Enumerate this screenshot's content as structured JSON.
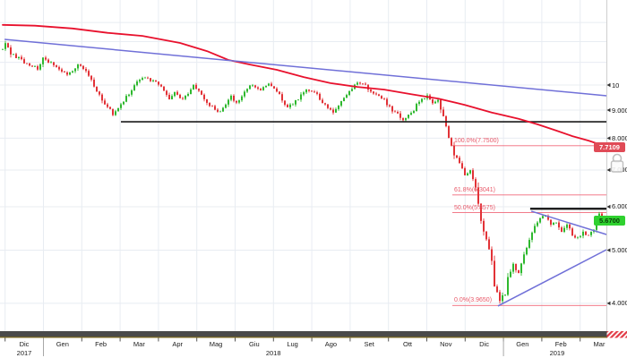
{
  "chart_data": {
    "type": "candlestick",
    "title": "",
    "y_axis": {
      "scale": "log",
      "ticks": [
        {
          "label": "10",
          "value": 10
        },
        {
          "label": "9.0000",
          "value": 9
        },
        {
          "label": "8.0000",
          "value": 8
        },
        {
          "label": "7.0000",
          "value": 7
        },
        {
          "label": "6.0000",
          "value": 6
        },
        {
          "label": "5.0000",
          "value": 5
        },
        {
          "label": "4.0000",
          "value": 4
        }
      ],
      "unlabeled_gridline_values": [
        13,
        12,
        11
      ],
      "indicator_badge": {
        "text": "7.7109",
        "value": 7.7109,
        "color": "#e04b57"
      },
      "last_price_badge": {
        "text": "5.6700",
        "value": 5.67,
        "color": "#2fd12f"
      }
    },
    "x_axis": {
      "months": [
        "Dic",
        "Gen",
        "Feb",
        "Mar",
        "Apr",
        "Mag",
        "Giu",
        "Lug",
        "Ago",
        "Set",
        "Ott",
        "Nov",
        "Dic",
        "Gen",
        "Feb",
        "Mar"
      ],
      "years": [
        {
          "label": "2017",
          "center_month_index": 0
        },
        {
          "label": "2018",
          "center_month_index": 6.5
        },
        {
          "label": "2019",
          "center_month_index": 13.9
        }
      ]
    },
    "fibonacci": {
      "color": "#f0697a",
      "levels": [
        {
          "label": "100.0%(7.7500)",
          "value": 7.75
        },
        {
          "label": "61.8%(6.3041)",
          "value": 6.3041
        },
        {
          "label": "50.0%(5.8575)",
          "value": 5.8575
        },
        {
          "label": "0.0%(3.9650)",
          "value": 3.965
        }
      ]
    },
    "moving_average": {
      "color": "#e8112d",
      "last_value": 7.7109,
      "points": [
        [
          0,
          12.87
        ],
        [
          12,
          12.83
        ],
        [
          26,
          12.68
        ],
        [
          39,
          12.45
        ],
        [
          52,
          12.29
        ],
        [
          66,
          11.93
        ],
        [
          76,
          11.53
        ],
        [
          84,
          11.11
        ],
        [
          92,
          10.9
        ],
        [
          102,
          10.66
        ],
        [
          112,
          10.34
        ],
        [
          122,
          10.08
        ],
        [
          132,
          9.92
        ],
        [
          142,
          9.81
        ],
        [
          152,
          9.62
        ],
        [
          162,
          9.45
        ],
        [
          172,
          9.2
        ],
        [
          182,
          8.91
        ],
        [
          192,
          8.68
        ],
        [
          199,
          8.48
        ],
        [
          206,
          8.26
        ],
        [
          212,
          8.07
        ],
        [
          218,
          7.92
        ],
        [
          224.7,
          7.72
        ]
      ]
    },
    "trendlines": [
      {
        "name": "long-term-descending",
        "color": "#7070d8",
        "from": [
          0.7,
          12.11
        ],
        "to": [
          224.7,
          9.56
        ]
      },
      {
        "name": "wedge-descending",
        "color": "#7070d8",
        "from": [
          196.7,
          5.89
        ],
        "to": [
          224.7,
          5.34
        ]
      },
      {
        "name": "wedge-ascending",
        "color": "#7070d8",
        "from": [
          184.3,
          3.955
        ],
        "to": [
          224.7,
          5.01
        ]
      }
    ],
    "support_lines": [
      {
        "name": "major-support",
        "color": "#1a1a1a",
        "width": 1.6,
        "from": [
          44,
          8.57
        ],
        "to": [
          224.7,
          8.57
        ]
      },
      {
        "name": "resistance-level",
        "color": "#111111",
        "width": 2.2,
        "from": [
          196.3,
          5.95
        ],
        "to": [
          224.7,
          5.95
        ]
      }
    ],
    "candles": {
      "count": 225,
      "up_color": "#2eb82e",
      "down_color": "#e23237",
      "last_close": 5.67,
      "low_floor": 3.958,
      "close_keypoints": [
        [
          0,
          11.62
        ],
        [
          1,
          11.98
        ],
        [
          3,
          11.4
        ],
        [
          6,
          11.19
        ],
        [
          9,
          10.9
        ],
        [
          13,
          10.72
        ],
        [
          15,
          11.18
        ],
        [
          19,
          10.9
        ],
        [
          24,
          10.42
        ],
        [
          28,
          10.9
        ],
        [
          31,
          10.58
        ],
        [
          34,
          10.0
        ],
        [
          37,
          9.38
        ],
        [
          41,
          8.87
        ],
        [
          43,
          9.1
        ],
        [
          46,
          9.52
        ],
        [
          50,
          10.11
        ],
        [
          52,
          10.34
        ],
        [
          56,
          10.19
        ],
        [
          59,
          9.89
        ],
        [
          62,
          9.45
        ],
        [
          64,
          9.67
        ],
        [
          67,
          9.38
        ],
        [
          71,
          9.96
        ],
        [
          73,
          9.75
        ],
        [
          77,
          9.17
        ],
        [
          81,
          8.91
        ],
        [
          85,
          9.52
        ],
        [
          87,
          9.25
        ],
        [
          92,
          9.96
        ],
        [
          96,
          9.81
        ],
        [
          99,
          10.03
        ],
        [
          102,
          9.75
        ],
        [
          106,
          9.1
        ],
        [
          109,
          9.34
        ],
        [
          113,
          9.81
        ],
        [
          117,
          9.6
        ],
        [
          121,
          9.02
        ],
        [
          123,
          8.91
        ],
        [
          127,
          9.52
        ],
        [
          132,
          10.11
        ],
        [
          135,
          9.96
        ],
        [
          138,
          9.67
        ],
        [
          142,
          9.38
        ],
        [
          145,
          8.98
        ],
        [
          149,
          8.67
        ],
        [
          152,
          8.84
        ],
        [
          155,
          9.38
        ],
        [
          158,
          9.52
        ],
        [
          160,
          9.25
        ],
        [
          162,
          9.38
        ],
        [
          164,
          8.76
        ],
        [
          166,
          7.98
        ],
        [
          168,
          7.49
        ],
        [
          170,
          7.21
        ],
        [
          172,
          6.84
        ],
        [
          174,
          6.95
        ],
        [
          176,
          6.49
        ],
        [
          178,
          5.63
        ],
        [
          180,
          5.26
        ],
        [
          182,
          4.81
        ],
        [
          183,
          4.3
        ],
        [
          185,
          4.06
        ],
        [
          187,
          4.17
        ],
        [
          188,
          4.46
        ],
        [
          190,
          4.7
        ],
        [
          192,
          4.54
        ],
        [
          194,
          4.9
        ],
        [
          196,
          5.22
        ],
        [
          198,
          5.55
        ],
        [
          200,
          5.71
        ],
        [
          202,
          5.8
        ],
        [
          204,
          5.55
        ],
        [
          206,
          5.63
        ],
        [
          208,
          5.42
        ],
        [
          210,
          5.55
        ],
        [
          212,
          5.34
        ],
        [
          214,
          5.26
        ],
        [
          216,
          5.42
        ],
        [
          218,
          5.3
        ],
        [
          220,
          5.46
        ],
        [
          222,
          5.84
        ],
        [
          224,
          5.67
        ]
      ]
    }
  }
}
